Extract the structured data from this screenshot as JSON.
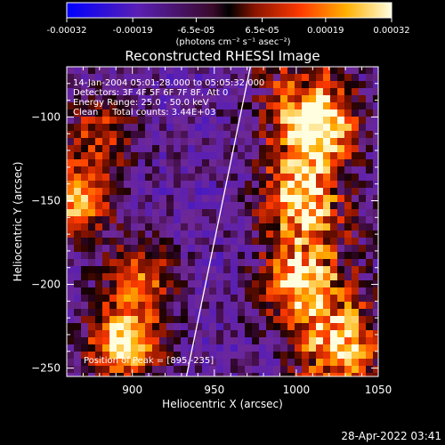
{
  "chart_data": {
    "type": "heatmap",
    "title": "Reconstructed RHESSI Image",
    "xlabel": "Heliocentric X (arcsec)",
    "ylabel": "Heliocentric Y (arcsec)",
    "xlim": [
      860,
      1050
    ],
    "ylim": [
      -255,
      -70
    ],
    "xticks": [
      900,
      950,
      1000,
      1050
    ],
    "xtick_labels": [
      "900",
      "950",
      "1000",
      "1050"
    ],
    "yticks": [
      -100,
      -150,
      -200,
      -250
    ],
    "ytick_labels": [
      "−100",
      "−150",
      "−200",
      "−250"
    ],
    "colorbar": {
      "ticks": [
        -0.00032,
        -0.00019,
        -6.5e-05,
        6.5e-05,
        0.00019,
        0.00032
      ],
      "tick_labels": [
        "-0.00032",
        "-0.00019",
        "-6.5e-05",
        "6.5e-05",
        "0.00019",
        "0.00032"
      ],
      "unit_label": "(photons cm⁻² s⁻¹ asec⁻²)",
      "range": [
        -0.00032,
        0.00032
      ]
    },
    "annotations": [
      "14-Jan-2004 05:01:28.000 to 05:05:32.000",
      "Detectors: 3F 4F 5F 6F 7F 8F, Att 0",
      "Energy Range: 25.0 - 50.0 keV",
      "Clean     Total counts: 3.44E+03"
    ],
    "peak_label": "Position of Peak = [895,-235]",
    "peak": [
      895,
      -235
    ],
    "limb_line": {
      "x_start": 933,
      "y_start": -255,
      "x_end": 972,
      "y_end": -70
    },
    "bright_regions": [
      {
        "x": 895,
        "y": -235,
        "strength": 1.0
      },
      {
        "x": 1015,
        "y": -105,
        "strength": 0.9
      },
      {
        "x": 865,
        "y": -150,
        "strength": 0.8
      },
      {
        "x": 1000,
        "y": -150,
        "strength": 0.65
      },
      {
        "x": 1000,
        "y": -200,
        "strength": 0.7
      },
      {
        "x": 1030,
        "y": -235,
        "strength": 0.6
      },
      {
        "x": 905,
        "y": -195,
        "strength": 0.6
      },
      {
        "x": 880,
        "y": -110,
        "strength": 0.5
      }
    ]
  },
  "footer": {
    "timestamp": "28-Apr-2022 03:41"
  }
}
